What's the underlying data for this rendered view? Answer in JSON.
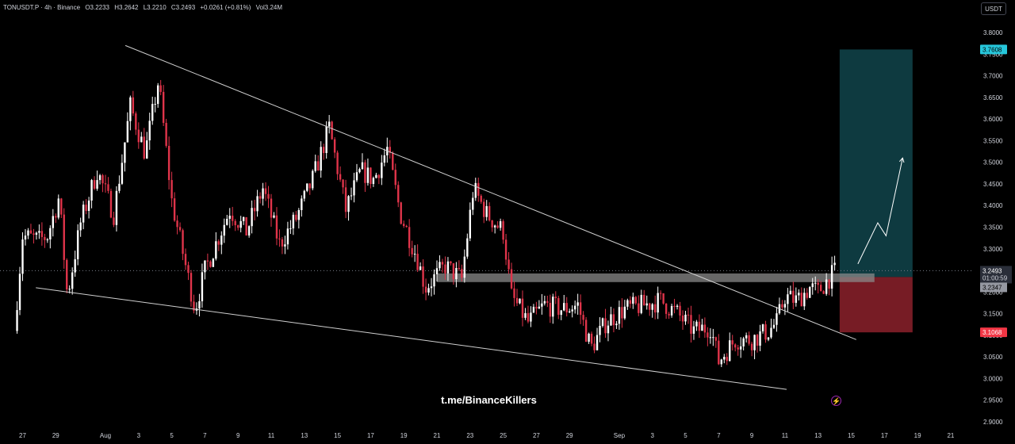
{
  "header": {
    "symbol": "TONUSDT.P · 4h · Binance",
    "open": "O3.2233",
    "high": "H3.2642",
    "low": "L3.2210",
    "close": "C3.2493",
    "change": "+0.0261 (+0.81%)",
    "volume": "Vol3.24M"
  },
  "currency_button": "USDT",
  "watermark": "t.me/BinanceKillers",
  "colors": {
    "background": "#000000",
    "up_candle": "#ffffff",
    "down_candle": "#e0344a",
    "profit_zone": "#0e3a40",
    "loss_zone": "#771c25",
    "target_label": "#26c6da",
    "stop_label": "#f23645",
    "trendline": "#d0d0d0",
    "text": "#d1d4dc"
  },
  "icons": {
    "bolt": "lightning-icon"
  },
  "chart_data": {
    "type": "candlestick",
    "symbol": "TONUSDT.P",
    "timeframe": "4h",
    "exchange": "Binance",
    "ylim": [
      2.88,
      3.82
    ],
    "y_ticks": [
      "3.8000",
      "3.7500",
      "3.7000",
      "3.6500",
      "3.6000",
      "3.5500",
      "3.5000",
      "3.4500",
      "3.4000",
      "3.3500",
      "3.3000",
      "3.2500",
      "3.2000",
      "3.1500",
      "3.1000",
      "3.0500",
      "3.0000",
      "2.9500",
      "2.9000"
    ],
    "x_ticks": [
      "27",
      "29",
      "Aug",
      "3",
      "5",
      "7",
      "9",
      "11",
      "13",
      "15",
      "17",
      "19",
      "21",
      "23",
      "25",
      "27",
      "29",
      "Sep",
      "3",
      "5",
      "7",
      "9",
      "11",
      "13",
      "15",
      "17",
      "19",
      "21"
    ],
    "x_tick_days": [
      -5,
      -3,
      0,
      2,
      4,
      6,
      8,
      10,
      12,
      14,
      16,
      18,
      20,
      22,
      24,
      26,
      28,
      31,
      33,
      35,
      37,
      39,
      41,
      43,
      45,
      47,
      49,
      51
    ],
    "price_labels": {
      "target": "3.7608",
      "current": "3.2493",
      "countdown": "01:00:59",
      "entry": "3.2347",
      "stop": "3.1068"
    },
    "position": {
      "entry": 3.2347,
      "target": 3.7608,
      "stop": 3.1068,
      "start_day": 44.3,
      "end_day": 48.7
    },
    "trendlines": [
      {
        "name": "upper-wedge-line",
        "points": [
          [
            1.2,
            3.77
          ],
          [
            45.3,
            3.09
          ]
        ]
      },
      {
        "name": "lower-wedge-line",
        "points": [
          [
            -4.2,
            3.21
          ],
          [
            41.1,
            2.975
          ]
        ]
      }
    ],
    "support_zone": {
      "y0": 3.223,
      "y1": 3.243,
      "start_day": 20,
      "end_day": 46.4
    },
    "projection": [
      [
        45.4,
        3.265
      ],
      [
        46.6,
        3.36
      ],
      [
        47.1,
        3.33
      ],
      [
        48.1,
        3.51
      ]
    ],
    "anchors": [
      [
        -5.5,
        3.11
      ],
      [
        -5.0,
        3.33
      ],
      [
        -4.0,
        3.32
      ],
      [
        -3.5,
        3.33
      ],
      [
        -2.8,
        3.42
      ],
      [
        -2.3,
        3.19
      ],
      [
        -1.5,
        3.36
      ],
      [
        -0.5,
        3.48
      ],
      [
        0.5,
        3.38
      ],
      [
        1.5,
        3.63
      ],
      [
        2.4,
        3.52
      ],
      [
        3.2,
        3.69
      ],
      [
        4.0,
        3.41
      ],
      [
        5.4,
        3.16
      ],
      [
        6.0,
        3.25
      ],
      [
        7.5,
        3.39
      ],
      [
        8.5,
        3.34
      ],
      [
        9.5,
        3.44
      ],
      [
        10.5,
        3.31
      ],
      [
        11.5,
        3.37
      ],
      [
        12.5,
        3.46
      ],
      [
        13.5,
        3.58
      ],
      [
        14.5,
        3.39
      ],
      [
        15.4,
        3.48
      ],
      [
        16.2,
        3.46
      ],
      [
        17.0,
        3.53
      ],
      [
        17.8,
        3.38
      ],
      [
        18.8,
        3.28
      ],
      [
        19.3,
        3.21
      ],
      [
        20.5,
        3.26
      ],
      [
        21.5,
        3.23
      ],
      [
        22.2,
        3.44
      ],
      [
        23.0,
        3.38
      ],
      [
        24.0,
        3.34
      ],
      [
        24.5,
        3.19
      ],
      [
        25.5,
        3.13
      ],
      [
        26.5,
        3.17
      ],
      [
        27.6,
        3.16
      ],
      [
        28.5,
        3.17
      ],
      [
        29.3,
        3.07
      ],
      [
        30.2,
        3.13
      ],
      [
        31.3,
        3.16
      ],
      [
        32.5,
        3.17
      ],
      [
        33.5,
        3.18
      ],
      [
        34.5,
        3.15
      ],
      [
        35.5,
        3.11
      ],
      [
        36.5,
        3.12
      ],
      [
        37.0,
        3.04
      ],
      [
        38.0,
        3.09
      ],
      [
        39.0,
        3.09
      ],
      [
        40.0,
        3.11
      ],
      [
        40.5,
        3.13
      ],
      [
        41.0,
        3.19
      ],
      [
        41.7,
        3.18
      ],
      [
        42.5,
        3.21
      ],
      [
        43.0,
        3.2
      ],
      [
        43.6,
        3.23
      ],
      [
        44.1,
        3.2493
      ]
    ]
  }
}
